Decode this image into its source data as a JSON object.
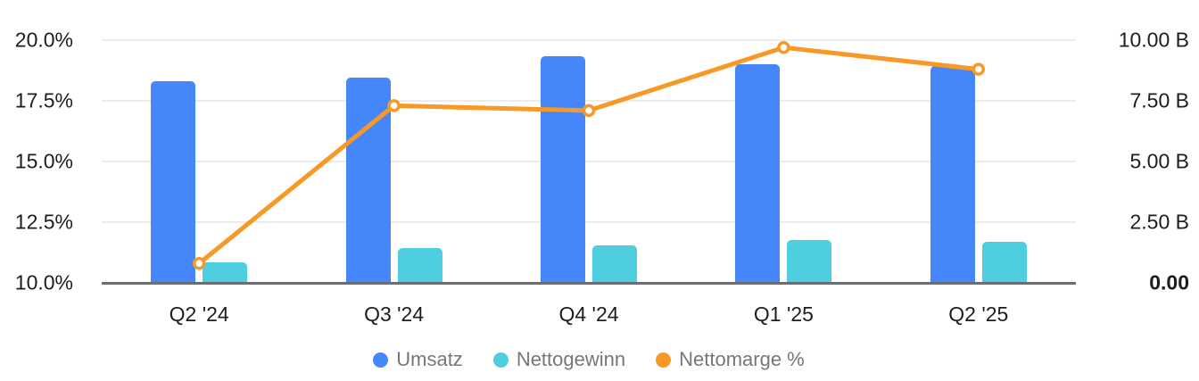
{
  "chart_data": {
    "type": "bar",
    "subtype": "combo-bar-line",
    "title": "",
    "categories": [
      "Q2 '24",
      "Q3 '24",
      "Q4 '24",
      "Q1 '25",
      "Q2 '25"
    ],
    "series": [
      {
        "name": "Umsatz",
        "type": "bar",
        "axis": "right",
        "color": "#4587fa",
        "unit": "B",
        "values": [
          8.3,
          8.45,
          9.35,
          9.0,
          8.95
        ]
      },
      {
        "name": "Nettogewinn",
        "type": "bar",
        "axis": "right",
        "color": "#4dcfe0",
        "unit": "B",
        "values": [
          0.85,
          1.43,
          1.55,
          1.75,
          1.68
        ]
      },
      {
        "name": "Nettomarge %",
        "type": "line",
        "axis": "left",
        "color": "#f89826",
        "unit": "%",
        "values": [
          10.8,
          17.3,
          17.1,
          19.7,
          18.8
        ]
      }
    ],
    "left_axis": {
      "ticks": [
        "20.0%",
        "17.5%",
        "15.0%",
        "12.5%",
        "10.0%"
      ],
      "min": 10,
      "max": 20
    },
    "right_axis": {
      "ticks": [
        "10.00 B",
        "7.50 B",
        "5.00 B",
        "2.50 B",
        "0.00"
      ],
      "min": 0,
      "max": 10
    },
    "grid": true,
    "legend_position": "bottom"
  },
  "colors": {
    "axis_text": "#1d1d1f",
    "legend_text": "#77777b",
    "gridline": "#ececec",
    "baseline": "#6e6e72",
    "background": "#ffffff"
  }
}
